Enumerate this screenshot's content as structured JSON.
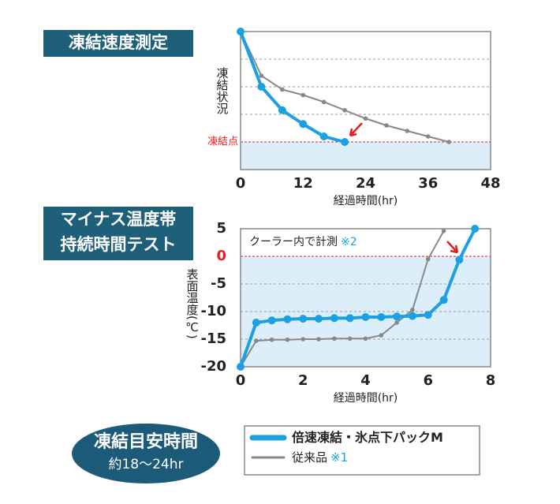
{
  "chart_data": [
    {
      "type": "line",
      "label_box": [
        "凍結速度測定"
      ],
      "ylabel": "凍結状況",
      "xlabel": "経過時間(hr)",
      "xlim": [
        0,
        48
      ],
      "xticks": [
        0,
        12,
        24,
        36,
        48
      ],
      "ylim": [
        0,
        5
      ],
      "y_gridlines": [
        2,
        3,
        4
      ],
      "reference": {
        "value": 1,
        "label": "凍結点",
        "color": "#e02020"
      },
      "shade_below_reference": "#dceef9",
      "series": [
        {
          "color": "#1ba1e2",
          "x": [
            0,
            4,
            8,
            12,
            16,
            20
          ],
          "values": [
            5,
            3,
            2.15,
            1.65,
            1.2,
            1
          ]
        },
        {
          "color": "#888888",
          "x": [
            0,
            4,
            8,
            12,
            16,
            20,
            24,
            28,
            32,
            36,
            40
          ],
          "values": [
            5,
            3.4,
            2.9,
            2.7,
            2.45,
            2.15,
            1.85,
            1.6,
            1.4,
            1.2,
            1
          ]
        }
      ]
    },
    {
      "type": "line",
      "label_box": [
        "マイナス温度帯",
        "持続時間テスト"
      ],
      "ylabel": "表面温度(℃)",
      "xlabel": "経過時間(hr)",
      "annotation": "クーラー内で計測",
      "annotation_note": "※2",
      "xlim": [
        0,
        8
      ],
      "xticks": [
        0,
        2,
        4,
        6,
        8
      ],
      "ylim": [
        -20,
        5
      ],
      "yticks": [
        5,
        0,
        -5,
        -10,
        -15,
        -20
      ],
      "reference": {
        "value": 0,
        "color": "#e02020"
      },
      "shade_below_reference": "#dceef9",
      "series": [
        {
          "name": "倍速凍結・氷点下パックM",
          "color": "#1ba1e2",
          "x": [
            0,
            0.5,
            1,
            1.5,
            2,
            2.5,
            3,
            3.5,
            4,
            4.5,
            5,
            5.5,
            6,
            6.5,
            7,
            7.5
          ],
          "values": [
            -20,
            -12,
            -11.6,
            -11.4,
            -11.3,
            -11.3,
            -11.2,
            -11.2,
            -11,
            -11,
            -10.9,
            -10.8,
            -10.6,
            -7.9,
            -0.6,
            5
          ]
        },
        {
          "name": "従来品",
          "note": "※1",
          "color": "#888888",
          "x": [
            0,
            0.5,
            1,
            1.5,
            2,
            2.5,
            3,
            3.5,
            4,
            4.5,
            5,
            5.5,
            6,
            6.5
          ],
          "values": [
            -20,
            -15.3,
            -15.1,
            -15.1,
            -15,
            -15,
            -14.9,
            -14.9,
            -14.9,
            -14.3,
            -12,
            -9.7,
            -0.5,
            4.6
          ]
        }
      ]
    }
  ],
  "summary": {
    "title": "凍結目安時間",
    "subtitle": "約18〜24hr"
  }
}
